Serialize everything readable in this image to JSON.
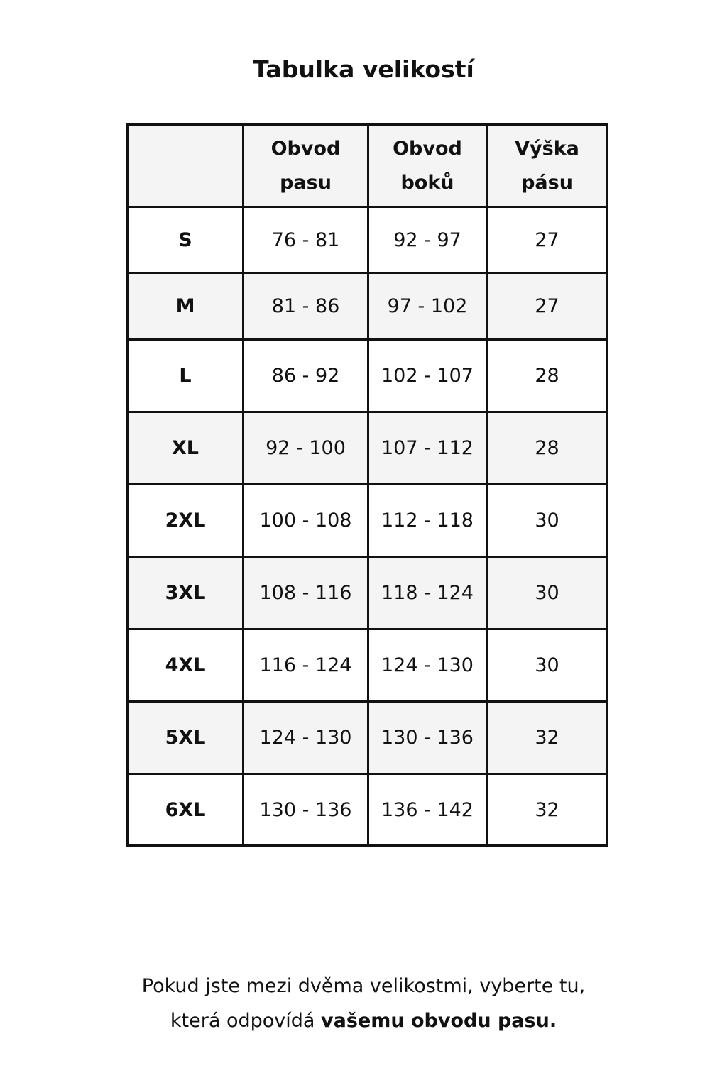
{
  "title": "Tabulka velikostí",
  "table": {
    "headers": [
      "",
      "Obvod pasu",
      "Obvod boků",
      "Výška pásu"
    ],
    "header_lines": [
      [
        "",
        ""
      ],
      [
        "Obvod",
        "pasu"
      ],
      [
        "Obvod",
        "boků"
      ],
      [
        "Výška",
        "pásu"
      ]
    ],
    "rows": [
      [
        "S",
        "76 - 81",
        "92 - 97",
        "27"
      ],
      [
        "M",
        "81 - 86",
        "97 - 102",
        "27"
      ],
      [
        "L",
        "86 - 92",
        "102 - 107",
        "28"
      ],
      [
        "XL",
        "92 - 100",
        "107 - 112",
        "28"
      ],
      [
        "2XL",
        "100 - 108",
        "112 - 118",
        "30"
      ],
      [
        "3XL",
        "108 - 116",
        "118 - 124",
        "30"
      ],
      [
        "4XL",
        "116 - 124",
        "124 - 130",
        "30"
      ],
      [
        "5XL",
        "124 - 130",
        "130 - 136",
        "32"
      ],
      [
        "6XL",
        "130 - 136",
        "136 - 142",
        "32"
      ]
    ]
  },
  "footer": {
    "line1": "Pokud jste mezi dvěma velikostmi, vyberte tu,",
    "line2_plain": "která odpovídá ",
    "line2_bold": "vašemu obvodu pasu."
  },
  "colors": {
    "border": "#111111",
    "stripe": "#f4f4f4"
  }
}
